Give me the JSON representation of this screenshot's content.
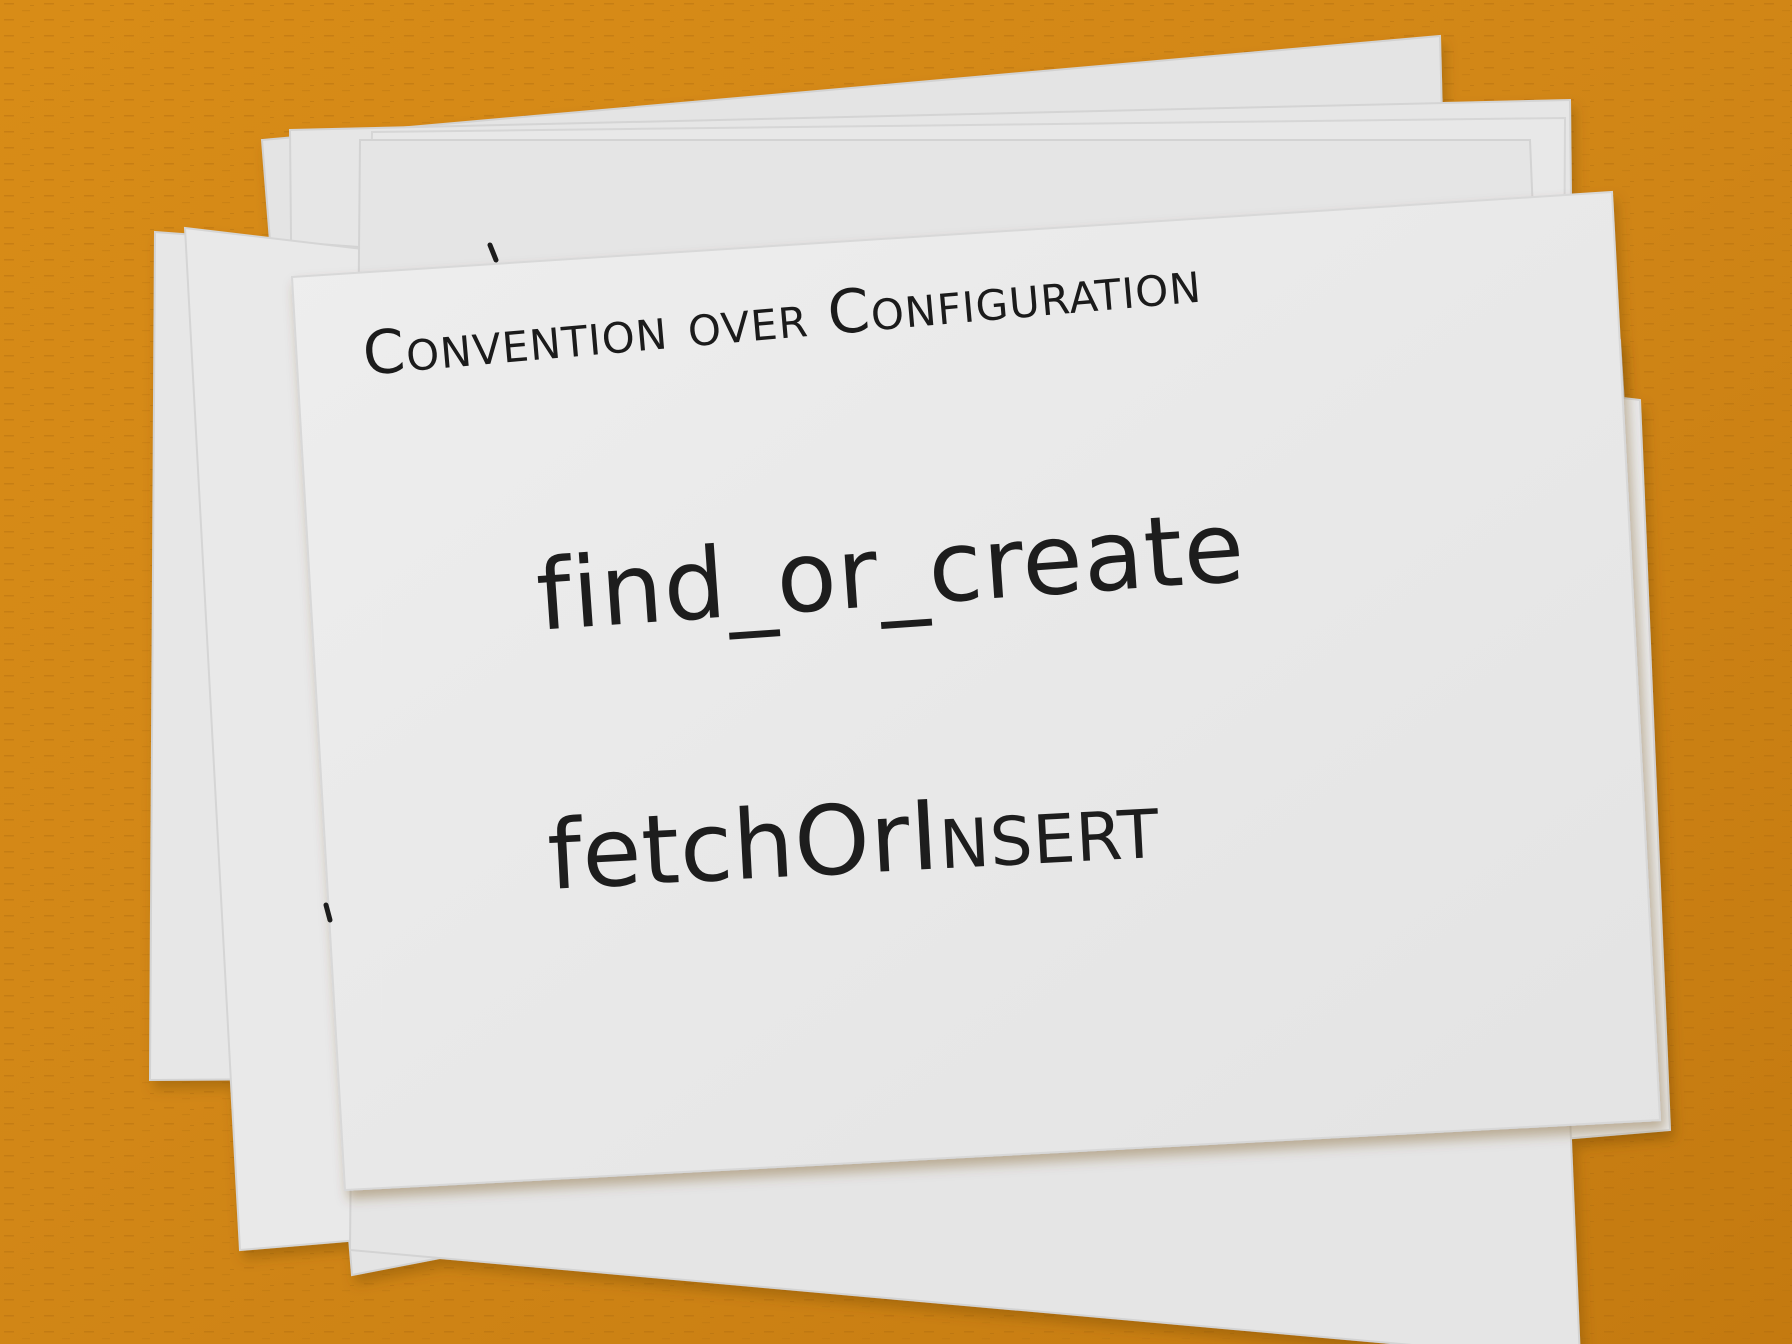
{
  "photo": {
    "background_color": "#d5891a",
    "card_color": "#e9e9e9",
    "ink_color": "#1c1c1c"
  },
  "card": {
    "heading": "Convention over Configuration",
    "line1": "find_or_create",
    "line2_prefix": "fetchOr",
    "line2_suffix": "Insert"
  }
}
